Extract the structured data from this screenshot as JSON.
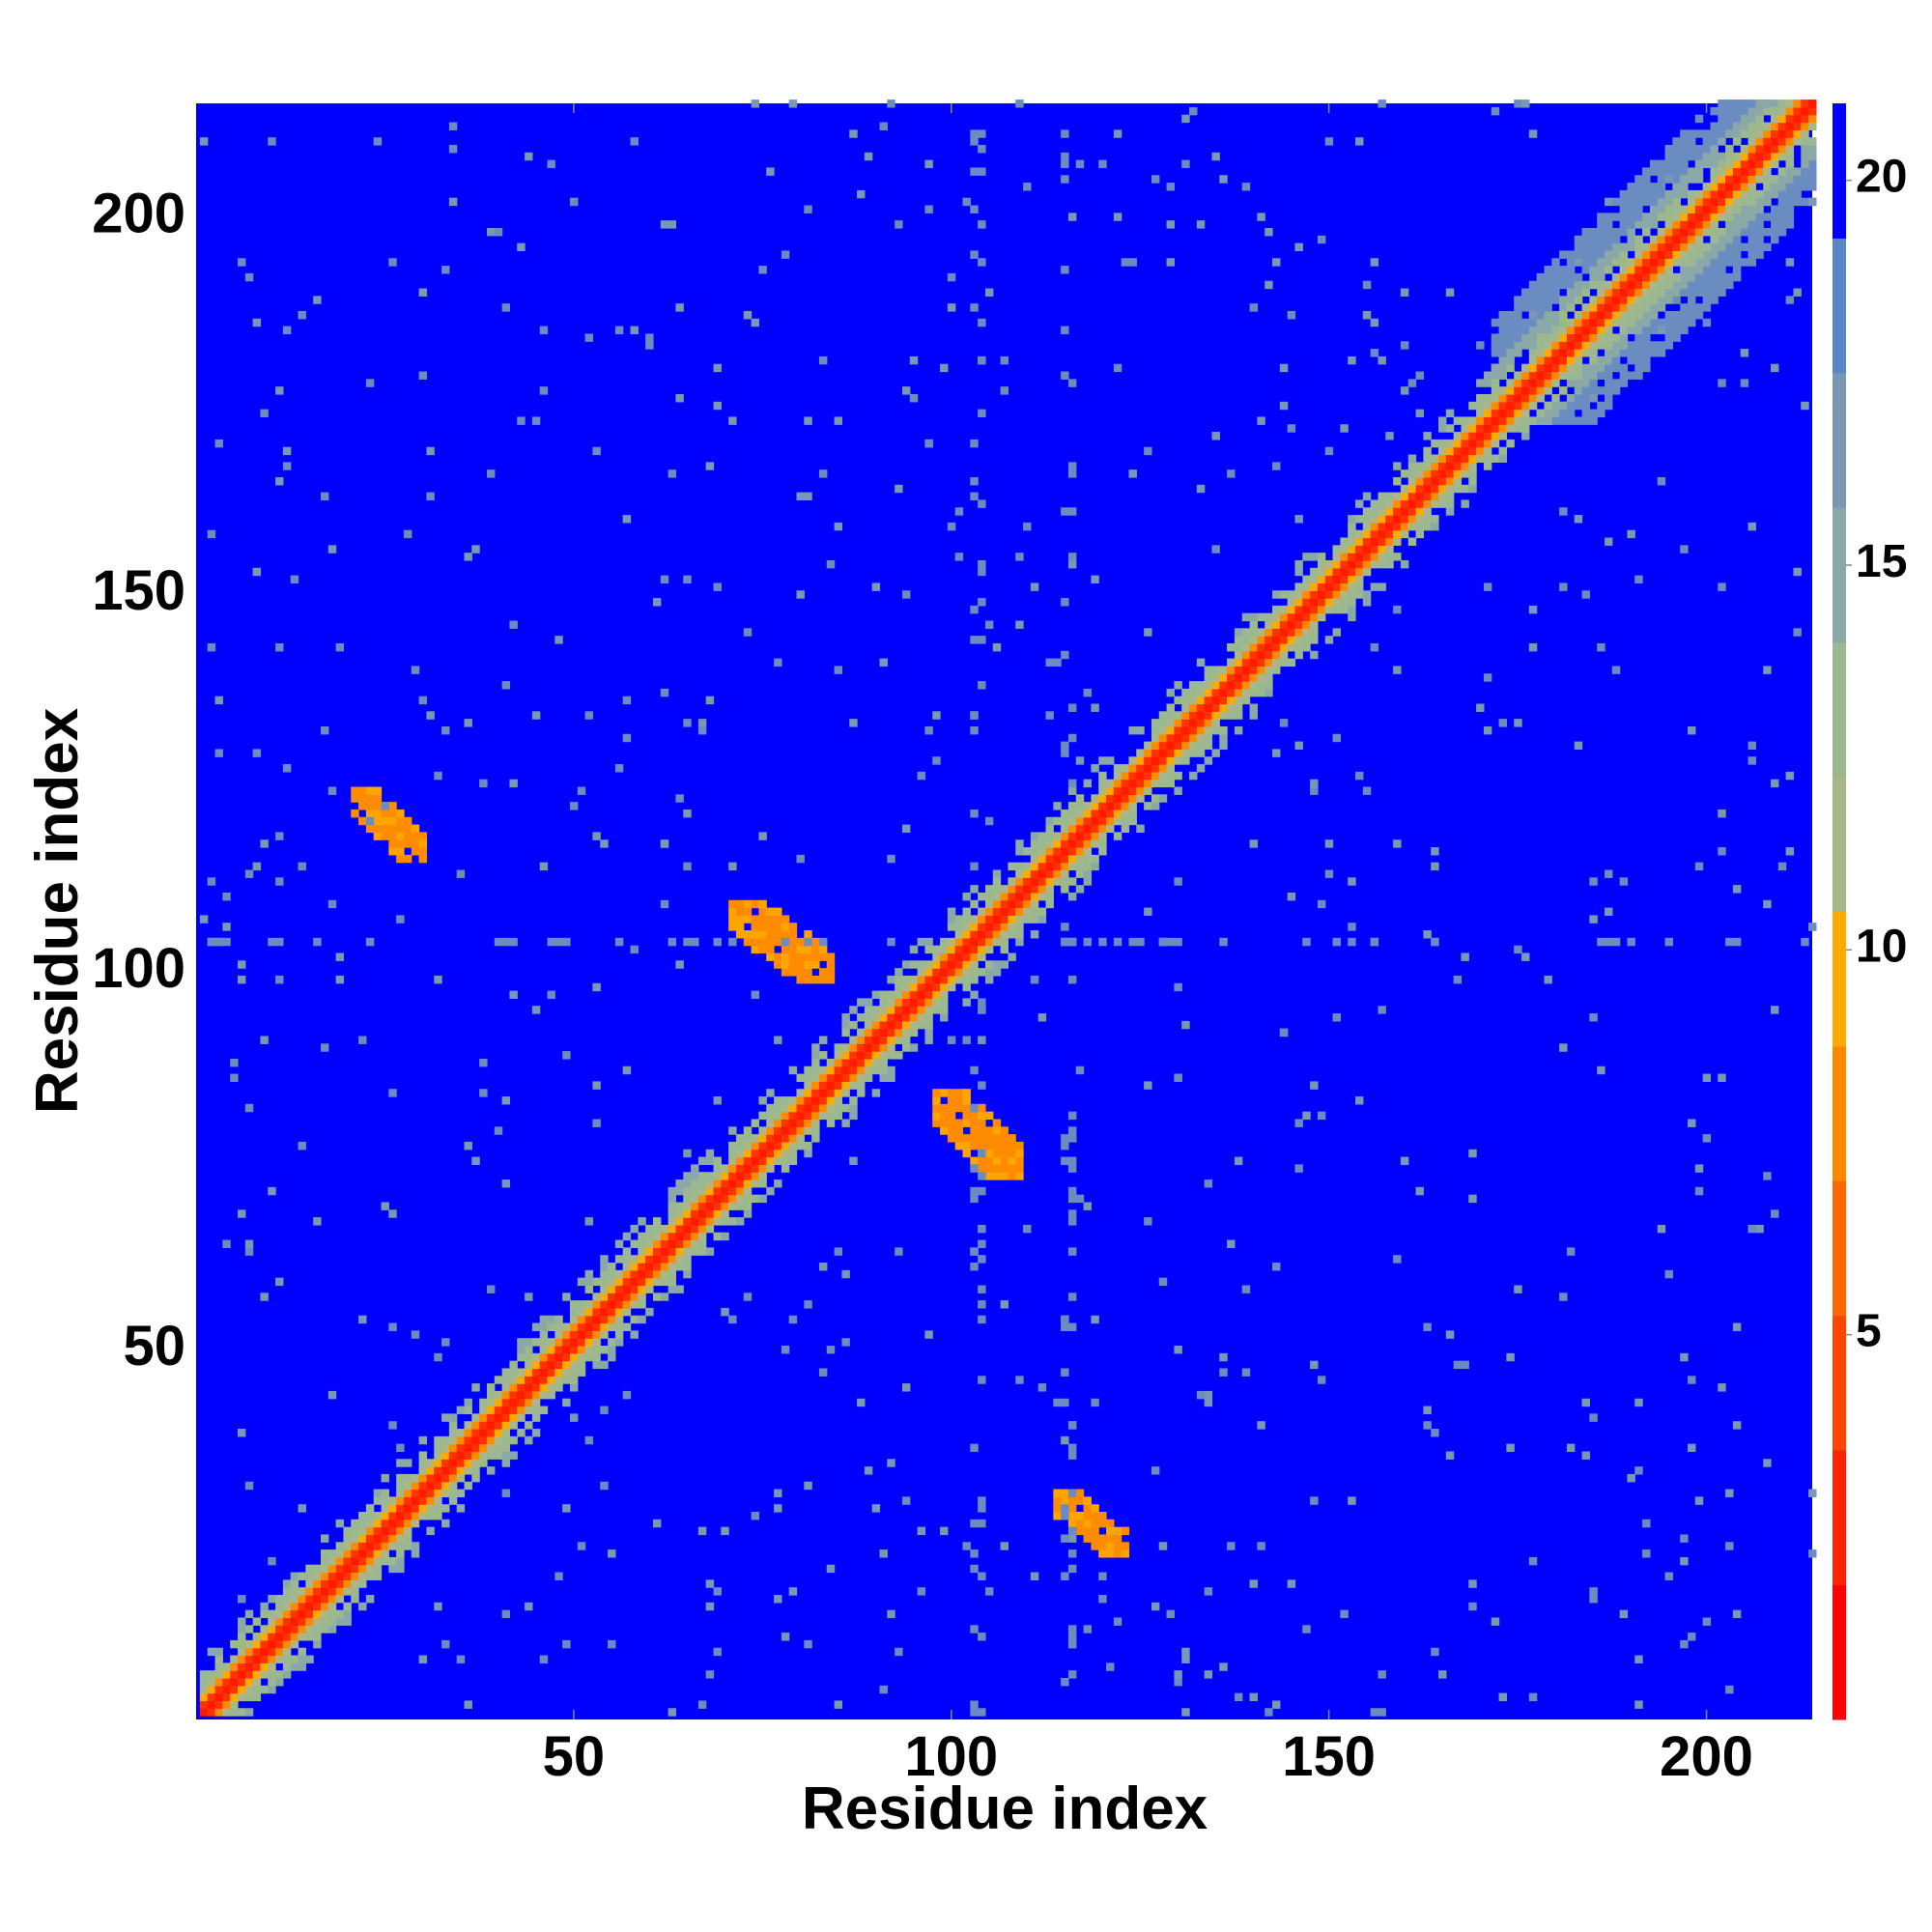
{
  "chart_data": {
    "type": "heatmap",
    "xlabel": "Residue index",
    "ylabel": "Residue index",
    "x_range": [
      1,
      214
    ],
    "y_range": [
      1,
      214
    ],
    "x_ticks": [
      50,
      100,
      150,
      200
    ],
    "y_ticks": [
      50,
      100,
      150,
      200
    ],
    "colorbar": {
      "ticks": [
        5,
        10,
        15,
        20
      ],
      "range": [
        0,
        21
      ],
      "colors": [
        "#ff0000",
        "#ff2200",
        "#ff4400",
        "#ff6600",
        "#ff8800",
        "#ffaa00",
        "#a8b888",
        "#9cb890",
        "#8aa8a8",
        "#7a98b4",
        "#5a86c4",
        "#0000ff"
      ]
    },
    "colors": {
      "far": "#0000ff",
      "diagonal": "#ff1a00",
      "close_orange": "#ff8c00",
      "mid_green": "#9cb890",
      "mid_slate": "#6a8cc0"
    },
    "features": {
      "diagonal": {
        "from": 1,
        "to": 214,
        "band": "red core with orange and green-gray flanks"
      },
      "contact_patches": [
        {
          "x": [
            71,
            84
          ],
          "y": [
            98,
            108
          ],
          "value": 6
        },
        {
          "x": [
            98,
            109
          ],
          "y": [
            72,
            83
          ],
          "value": 6
        },
        {
          "x": [
            21,
            30
          ],
          "y": [
            114,
            123
          ],
          "value": 6
        },
        {
          "x": [
            114,
            123
          ],
          "y": [
            22,
            30
          ],
          "value": 6
        }
      ],
      "diffuse_region": {
        "x": [
          172,
          214
        ],
        "y": [
          172,
          214
        ],
        "value": 17
      }
    }
  }
}
